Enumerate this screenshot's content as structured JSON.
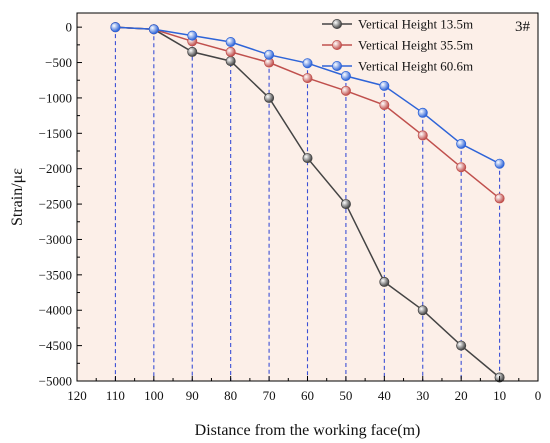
{
  "chart_data": {
    "type": "line",
    "panel_label": "3#",
    "xlabel": "Distance from the working face(m)",
    "ylabel": "Strain/με",
    "xlim": [
      120,
      0
    ],
    "ylim": [
      -5000,
      200
    ],
    "x_ticks": [
      120,
      110,
      100,
      90,
      80,
      70,
      60,
      50,
      40,
      30,
      20,
      10,
      0
    ],
    "y_ticks": [
      0,
      -500,
      -1000,
      -1500,
      -2000,
      -2500,
      -3000,
      -3500,
      -4000,
      -4500,
      -5000
    ],
    "x": [
      110,
      100,
      90,
      80,
      70,
      60,
      50,
      40,
      30,
      20,
      10
    ],
    "grid": false,
    "vertical_guides": true,
    "legend_position": "top-right",
    "background_color": "#fcefe8",
    "series": [
      {
        "name": "Vertical Height 13.5m",
        "color": "#444444",
        "values": [
          0,
          -30,
          -350,
          -480,
          -1000,
          -1850,
          -2500,
          -3600,
          -4000,
          -4500,
          -4950
        ]
      },
      {
        "name": "Vertical Height 35.5m",
        "color": "#c0504d",
        "values": [
          0,
          -30,
          -200,
          -350,
          -500,
          -720,
          -900,
          -1100,
          -1530,
          -1980,
          -2420
        ]
      },
      {
        "name": "Vertical Height 60.6m",
        "color": "#2e64d8",
        "values": [
          0,
          -30,
          -120,
          -210,
          -390,
          -510,
          -690,
          -830,
          -1210,
          -1650,
          -1930
        ]
      }
    ]
  }
}
